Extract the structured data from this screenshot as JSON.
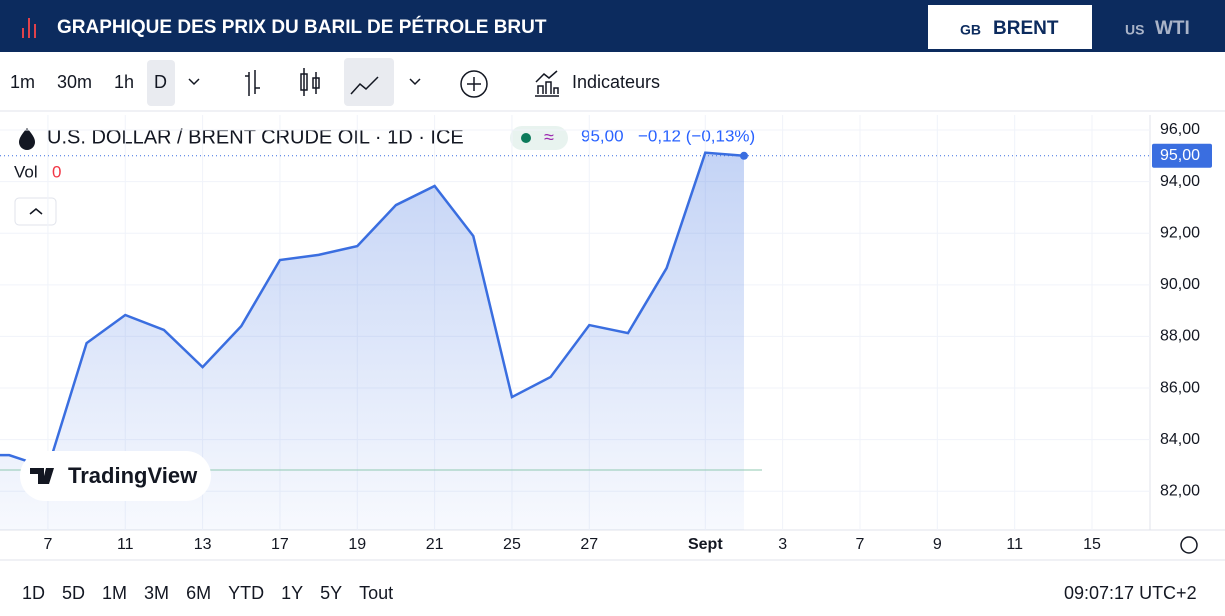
{
  "header": {
    "title": "GRAPHIQUE DES PRIX DU BARIL DE PÉTROLE BRUT",
    "tabs": [
      {
        "flag": "GB",
        "label": "BRENT"
      },
      {
        "flag": "US",
        "label": "WTI"
      }
    ]
  },
  "toolbar": {
    "intervals": [
      "1m",
      "30m",
      "1h",
      "D"
    ],
    "indicators": "Indicateurs"
  },
  "legend": {
    "symbol": "U.S. DOLLAR / BRENT CRUDE OIL · 1D · ICE",
    "price": "95,00",
    "change": "−0,12 (−0,13%)",
    "volume_label": "Vol",
    "volume": 0
  },
  "watermark": "TradingView",
  "ranges": [
    "1D",
    "5D",
    "1M",
    "3M",
    "6M",
    "YTD",
    "1Y",
    "5Y",
    "Tout"
  ],
  "clock": "09:07:17 UTC+2",
  "chart_data": {
    "type": "area",
    "color": "#3a6ee0",
    "categories": [
      null,
      "7",
      null,
      "11",
      null,
      "13",
      null,
      "17",
      null,
      "19",
      null,
      "21",
      null,
      "25",
      null,
      "27",
      null,
      null,
      "Sept",
      null,
      "3",
      null,
      "7",
      null,
      "9",
      null,
      "11",
      null,
      "15"
    ],
    "values": [
      83.4,
      82.9,
      87.74,
      88.83,
      88.25,
      86.81,
      88.4,
      90.96,
      91.16,
      91.5,
      93.09,
      93.83,
      91.89,
      85.65,
      86.43,
      88.44,
      88.13,
      90.65,
      95.12,
      95.0,
      null,
      null,
      null,
      null,
      null,
      null,
      null,
      null,
      null
    ],
    "ylim": [
      80.5,
      96.58
    ],
    "yticks": [
      {
        "value": 82,
        "label": "82,00"
      },
      {
        "value": 84,
        "label": "84,00"
      },
      {
        "value": 86,
        "label": "86,00"
      },
      {
        "value": 88,
        "label": "88,00"
      },
      {
        "value": 90,
        "label": "90,00"
      },
      {
        "value": 92,
        "label": "92,00"
      },
      {
        "value": 94,
        "label": "94,00"
      },
      {
        "value": 96,
        "label": "96,00"
      }
    ],
    "grid": true
  }
}
